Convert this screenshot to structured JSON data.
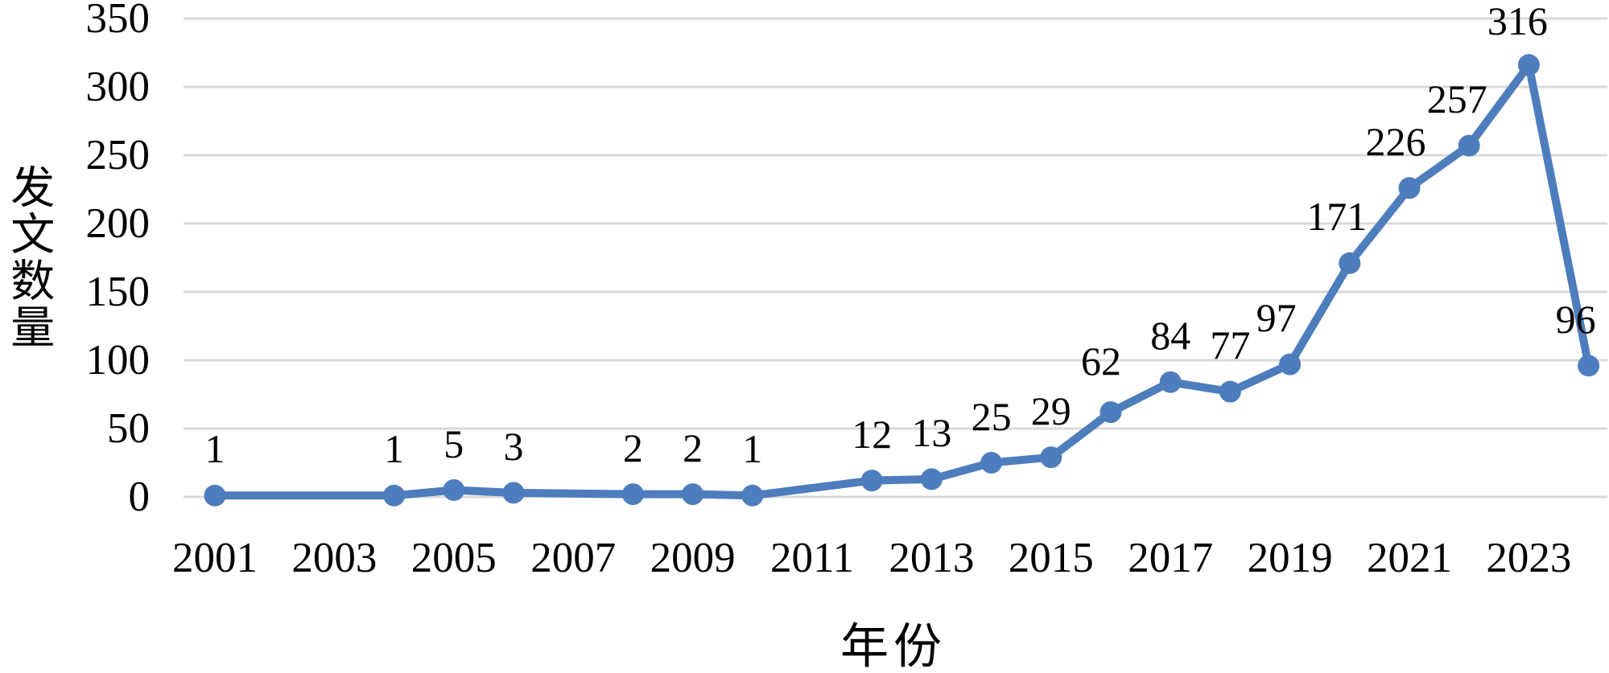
{
  "chart_data": {
    "type": "line",
    "title": "",
    "xlabel": "年份",
    "ylabel": "发文数量",
    "ylim": [
      0,
      350
    ],
    "yticks": [
      0,
      50,
      100,
      150,
      200,
      250,
      300,
      350
    ],
    "xticks": [
      2001,
      2003,
      2005,
      2007,
      2009,
      2011,
      2013,
      2015,
      2017,
      2019,
      2021,
      2023
    ],
    "grid": "horizontal",
    "legend": "none",
    "marker": "circle",
    "line_color": "#4d7dbd",
    "gridline_color": "#d9d9d9",
    "label_color": "#000000",
    "series": [
      {
        "name": "发文数量",
        "points": [
          {
            "year": 2001,
            "value": 1
          },
          {
            "year": 2004,
            "value": 1
          },
          {
            "year": 2005,
            "value": 5
          },
          {
            "year": 2006,
            "value": 3
          },
          {
            "year": 2008,
            "value": 2
          },
          {
            "year": 2009,
            "value": 2
          },
          {
            "year": 2010,
            "value": 1
          },
          {
            "year": 2012,
            "value": 12
          },
          {
            "year": 2013,
            "value": 13
          },
          {
            "year": 2014,
            "value": 25
          },
          {
            "year": 2015,
            "value": 29
          },
          {
            "year": 2016,
            "value": 62
          },
          {
            "year": 2017,
            "value": 84
          },
          {
            "year": 2018,
            "value": 77
          },
          {
            "year": 2019,
            "value": 97
          },
          {
            "year": 2020,
            "value": 171
          },
          {
            "year": 2021,
            "value": 226
          },
          {
            "year": 2022,
            "value": 257
          },
          {
            "year": 2023,
            "value": 316
          },
          {
            "year": 2024,
            "value": 96
          }
        ]
      }
    ]
  }
}
